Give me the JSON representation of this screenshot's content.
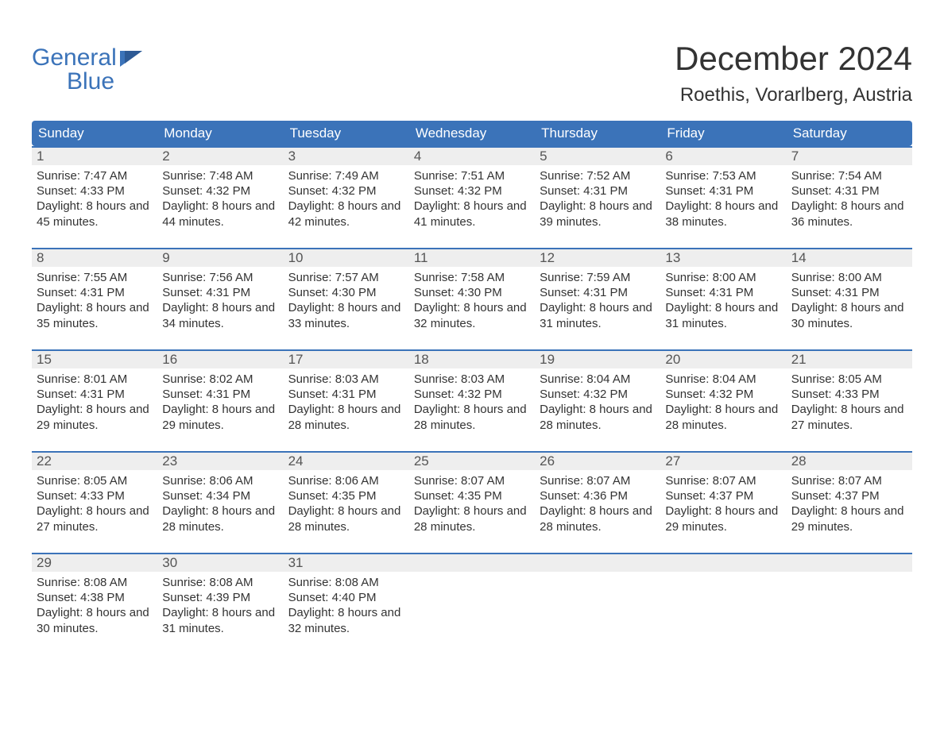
{
  "brand": {
    "word1": "General",
    "word2": "Blue",
    "color": "#3b73b9"
  },
  "month_title": "December 2024",
  "location": "Roethis, Vorarlberg, Austria",
  "colors": {
    "header_bg": "#3b73b9",
    "header_text": "#ffffff",
    "day_strip_bg": "#eeeeee",
    "week_border": "#3b73b9",
    "body_text": "#333333",
    "background": "#ffffff"
  },
  "weekdays": [
    "Sunday",
    "Monday",
    "Tuesday",
    "Wednesday",
    "Thursday",
    "Friday",
    "Saturday"
  ],
  "weeks": [
    [
      {
        "day": "1",
        "sunrise": "Sunrise: 7:47 AM",
        "sunset": "Sunset: 4:33 PM",
        "daylight": "Daylight: 8 hours and 45 minutes."
      },
      {
        "day": "2",
        "sunrise": "Sunrise: 7:48 AM",
        "sunset": "Sunset: 4:32 PM",
        "daylight": "Daylight: 8 hours and 44 minutes."
      },
      {
        "day": "3",
        "sunrise": "Sunrise: 7:49 AM",
        "sunset": "Sunset: 4:32 PM",
        "daylight": "Daylight: 8 hours and 42 minutes."
      },
      {
        "day": "4",
        "sunrise": "Sunrise: 7:51 AM",
        "sunset": "Sunset: 4:32 PM",
        "daylight": "Daylight: 8 hours and 41 minutes."
      },
      {
        "day": "5",
        "sunrise": "Sunrise: 7:52 AM",
        "sunset": "Sunset: 4:31 PM",
        "daylight": "Daylight: 8 hours and 39 minutes."
      },
      {
        "day": "6",
        "sunrise": "Sunrise: 7:53 AM",
        "sunset": "Sunset: 4:31 PM",
        "daylight": "Daylight: 8 hours and 38 minutes."
      },
      {
        "day": "7",
        "sunrise": "Sunrise: 7:54 AM",
        "sunset": "Sunset: 4:31 PM",
        "daylight": "Daylight: 8 hours and 36 minutes."
      }
    ],
    [
      {
        "day": "8",
        "sunrise": "Sunrise: 7:55 AM",
        "sunset": "Sunset: 4:31 PM",
        "daylight": "Daylight: 8 hours and 35 minutes."
      },
      {
        "day": "9",
        "sunrise": "Sunrise: 7:56 AM",
        "sunset": "Sunset: 4:31 PM",
        "daylight": "Daylight: 8 hours and 34 minutes."
      },
      {
        "day": "10",
        "sunrise": "Sunrise: 7:57 AM",
        "sunset": "Sunset: 4:30 PM",
        "daylight": "Daylight: 8 hours and 33 minutes."
      },
      {
        "day": "11",
        "sunrise": "Sunrise: 7:58 AM",
        "sunset": "Sunset: 4:30 PM",
        "daylight": "Daylight: 8 hours and 32 minutes."
      },
      {
        "day": "12",
        "sunrise": "Sunrise: 7:59 AM",
        "sunset": "Sunset: 4:31 PM",
        "daylight": "Daylight: 8 hours and 31 minutes."
      },
      {
        "day": "13",
        "sunrise": "Sunrise: 8:00 AM",
        "sunset": "Sunset: 4:31 PM",
        "daylight": "Daylight: 8 hours and 31 minutes."
      },
      {
        "day": "14",
        "sunrise": "Sunrise: 8:00 AM",
        "sunset": "Sunset: 4:31 PM",
        "daylight": "Daylight: 8 hours and 30 minutes."
      }
    ],
    [
      {
        "day": "15",
        "sunrise": "Sunrise: 8:01 AM",
        "sunset": "Sunset: 4:31 PM",
        "daylight": "Daylight: 8 hours and 29 minutes."
      },
      {
        "day": "16",
        "sunrise": "Sunrise: 8:02 AM",
        "sunset": "Sunset: 4:31 PM",
        "daylight": "Daylight: 8 hours and 29 minutes."
      },
      {
        "day": "17",
        "sunrise": "Sunrise: 8:03 AM",
        "sunset": "Sunset: 4:31 PM",
        "daylight": "Daylight: 8 hours and 28 minutes."
      },
      {
        "day": "18",
        "sunrise": "Sunrise: 8:03 AM",
        "sunset": "Sunset: 4:32 PM",
        "daylight": "Daylight: 8 hours and 28 minutes."
      },
      {
        "day": "19",
        "sunrise": "Sunrise: 8:04 AM",
        "sunset": "Sunset: 4:32 PM",
        "daylight": "Daylight: 8 hours and 28 minutes."
      },
      {
        "day": "20",
        "sunrise": "Sunrise: 8:04 AM",
        "sunset": "Sunset: 4:32 PM",
        "daylight": "Daylight: 8 hours and 28 minutes."
      },
      {
        "day": "21",
        "sunrise": "Sunrise: 8:05 AM",
        "sunset": "Sunset: 4:33 PM",
        "daylight": "Daylight: 8 hours and 27 minutes."
      }
    ],
    [
      {
        "day": "22",
        "sunrise": "Sunrise: 8:05 AM",
        "sunset": "Sunset: 4:33 PM",
        "daylight": "Daylight: 8 hours and 27 minutes."
      },
      {
        "day": "23",
        "sunrise": "Sunrise: 8:06 AM",
        "sunset": "Sunset: 4:34 PM",
        "daylight": "Daylight: 8 hours and 28 minutes."
      },
      {
        "day": "24",
        "sunrise": "Sunrise: 8:06 AM",
        "sunset": "Sunset: 4:35 PM",
        "daylight": "Daylight: 8 hours and 28 minutes."
      },
      {
        "day": "25",
        "sunrise": "Sunrise: 8:07 AM",
        "sunset": "Sunset: 4:35 PM",
        "daylight": "Daylight: 8 hours and 28 minutes."
      },
      {
        "day": "26",
        "sunrise": "Sunrise: 8:07 AM",
        "sunset": "Sunset: 4:36 PM",
        "daylight": "Daylight: 8 hours and 28 minutes."
      },
      {
        "day": "27",
        "sunrise": "Sunrise: 8:07 AM",
        "sunset": "Sunset: 4:37 PM",
        "daylight": "Daylight: 8 hours and 29 minutes."
      },
      {
        "day": "28",
        "sunrise": "Sunrise: 8:07 AM",
        "sunset": "Sunset: 4:37 PM",
        "daylight": "Daylight: 8 hours and 29 minutes."
      }
    ],
    [
      {
        "day": "29",
        "sunrise": "Sunrise: 8:08 AM",
        "sunset": "Sunset: 4:38 PM",
        "daylight": "Daylight: 8 hours and 30 minutes."
      },
      {
        "day": "30",
        "sunrise": "Sunrise: 8:08 AM",
        "sunset": "Sunset: 4:39 PM",
        "daylight": "Daylight: 8 hours and 31 minutes."
      },
      {
        "day": "31",
        "sunrise": "Sunrise: 8:08 AM",
        "sunset": "Sunset: 4:40 PM",
        "daylight": "Daylight: 8 hours and 32 minutes."
      },
      {
        "empty": true
      },
      {
        "empty": true
      },
      {
        "empty": true
      },
      {
        "empty": true
      }
    ]
  ]
}
